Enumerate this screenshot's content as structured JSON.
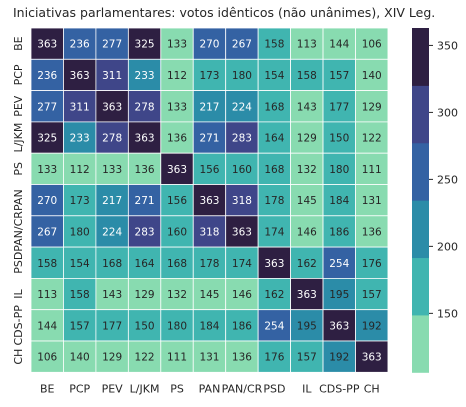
{
  "chart_data": {
    "type": "heatmap",
    "title": "Iniciativas parlamentares: votos idênticos (não unânimes), XIV Leg.",
    "xlabel": "",
    "ylabel": "",
    "categories": [
      "BE",
      "PCP",
      "PEV",
      "L/JKM",
      "PS",
      "PAN",
      "PAN/CR",
      "PSD",
      "IL",
      "CDS-PP",
      "CH"
    ],
    "matrix": [
      [
        363,
        236,
        277,
        325,
        133,
        270,
        267,
        158,
        113,
        144,
        106
      ],
      [
        236,
        363,
        311,
        233,
        112,
        173,
        180,
        154,
        158,
        157,
        140
      ],
      [
        277,
        311,
        363,
        278,
        133,
        217,
        224,
        168,
        143,
        177,
        129
      ],
      [
        325,
        233,
        278,
        363,
        136,
        271,
        283,
        164,
        129,
        150,
        122
      ],
      [
        133,
        112,
        133,
        136,
        363,
        156,
        160,
        168,
        132,
        180,
        111
      ],
      [
        270,
        173,
        217,
        271,
        156,
        363,
        318,
        178,
        145,
        184,
        131
      ],
      [
        267,
        180,
        224,
        283,
        160,
        318,
        363,
        174,
        146,
        186,
        136
      ],
      [
        158,
        154,
        168,
        164,
        168,
        178,
        174,
        363,
        162,
        254,
        176
      ],
      [
        113,
        158,
        143,
        129,
        132,
        145,
        146,
        162,
        363,
        195,
        157
      ],
      [
        144,
        157,
        177,
        150,
        180,
        184,
        186,
        254,
        195,
        363,
        192
      ],
      [
        106,
        140,
        129,
        122,
        111,
        131,
        136,
        176,
        157,
        192,
        363
      ]
    ],
    "value_range": [
      106,
      363
    ],
    "colorbar_ticks": [
      150,
      200,
      250,
      300,
      350
    ],
    "colors": [
      "#88dbb0",
      "#40b5b0",
      "#2b8ca8",
      "#3462a3",
      "#3f4689",
      "#2e1f42"
    ],
    "grid": false,
    "legend": "colorbar-right"
  }
}
